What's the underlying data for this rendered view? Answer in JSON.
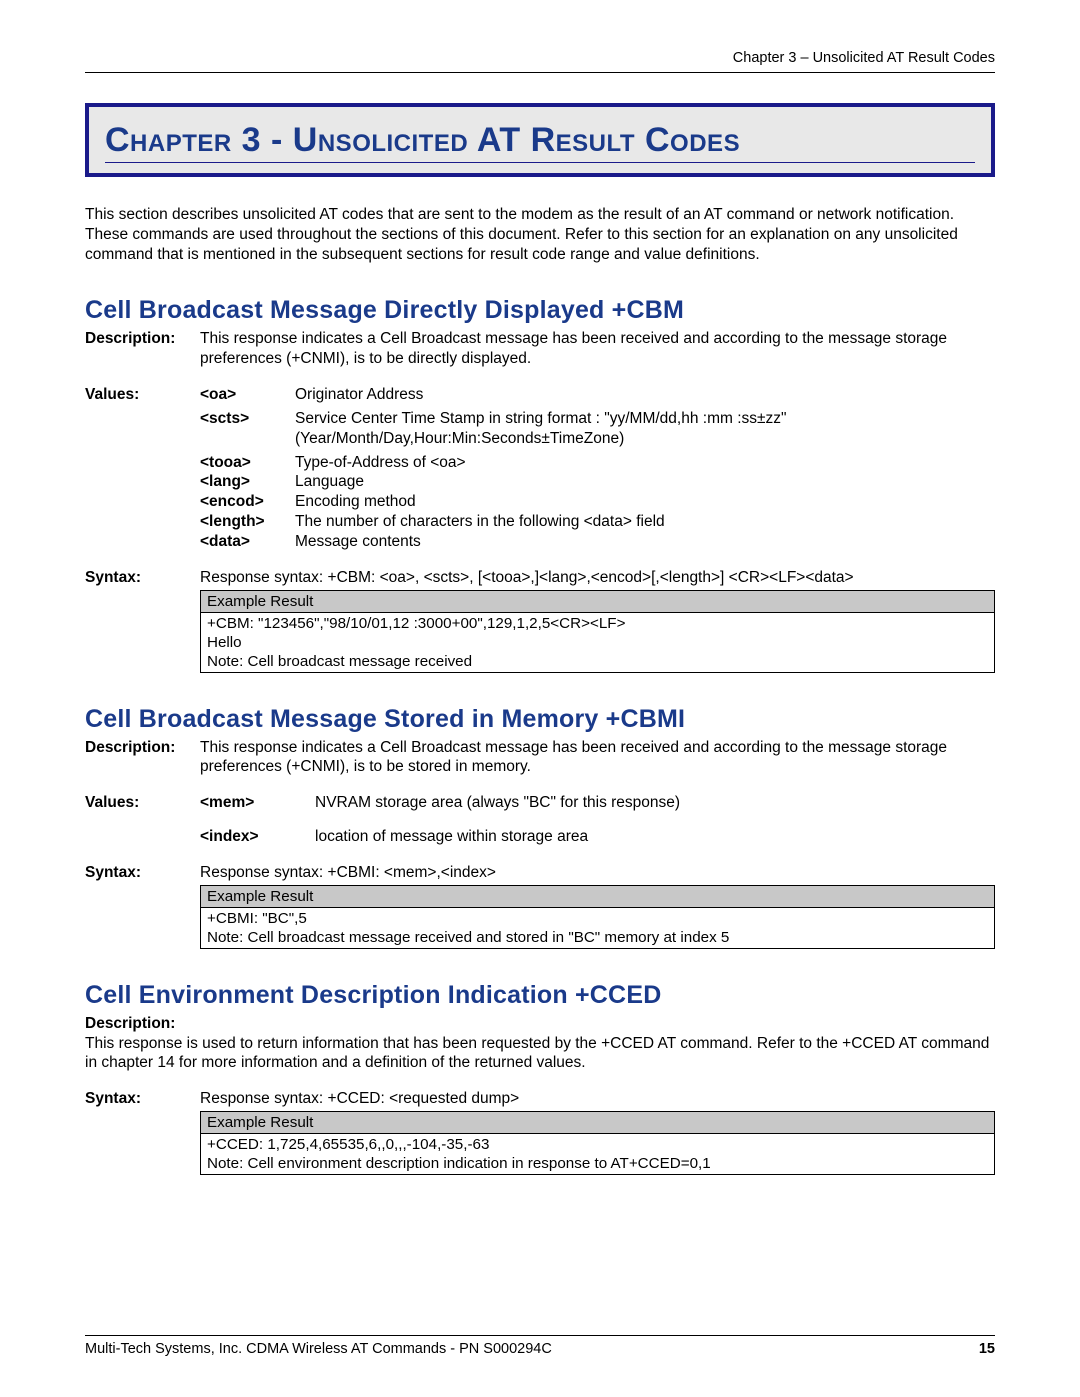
{
  "header": "Chapter 3 – Unsolicited AT Result Codes",
  "chapter_title": "Chapter 3 - Unsolicited AT Result Codes",
  "intro": "This section describes unsolicited AT codes that are sent to the modem as the result of an AT command or network notification. These commands are used throughout the sections of this document. Refer to this section for an explanation on any unsolicited command that is mentioned in the subsequent sections for result code range and value definitions.",
  "labels": {
    "description": "Description:",
    "values": "Values:",
    "syntax": "Syntax:",
    "example_result": "Example Result"
  },
  "cbm": {
    "heading": "Cell Broadcast Message Directly Displayed  +CBM",
    "description": "This response indicates a Cell Broadcast message has been received and according to the message storage preferences (+CNMI), is to be directly displayed.",
    "values": [
      {
        "key": "<oa>",
        "desc": "Originator Address"
      },
      {
        "key": "<scts>",
        "desc": "Service Center Time Stamp in string format : \"yy/MM/dd,hh :mm :ss±zz\" (Year/Month/Day,Hour:Min:Seconds±TimeZone)"
      },
      {
        "key": "<tooa>",
        "desc": "Type-of-Address of <oa>"
      },
      {
        "key": "<lang>",
        "desc": "Language"
      },
      {
        "key": "<encod>",
        "desc": "Encoding method"
      },
      {
        "key": "<length>",
        "desc": "The number of characters in the following <data> field"
      },
      {
        "key": "<data>",
        "desc": "Message contents"
      }
    ],
    "syntax_text": "Response syntax: +CBM: <oa>, <scts>, [<tooa>,]<lang>,<encod>[,<length>] <CR><LF><data>",
    "example_lines": [
      "+CBM: \"123456\",\"98/10/01,12 :3000+00\",129,1,2,5<CR><LF>",
      "Hello",
      "Note: Cell broadcast message received"
    ]
  },
  "cbmi": {
    "heading": "Cell Broadcast Message Stored in Memory  +CBMI",
    "description": "This response indicates a Cell Broadcast message has been received and according to the message storage preferences (+CNMI), is to be stored in memory.",
    "values": [
      {
        "key": "<mem>",
        "desc": "NVRAM storage area (always \"BC\" for this response)"
      },
      {
        "key": "<index>",
        "desc": "location of message within storage area"
      }
    ],
    "syntax_text": "Response syntax: +CBMI: <mem>,<index>",
    "example_lines": [
      "+CBMI: \"BC\",5",
      "Note: Cell broadcast message received and stored in \"BC\" memory at index 5"
    ]
  },
  "cced": {
    "heading": "Cell Environment Description Indication  +CCED",
    "description": "This response is used to return information that has been requested by the +CCED AT command. Refer to the +CCED AT command in chapter 14 for more information and a definition of the returned values.",
    "syntax_text": "Response syntax: +CCED: <requested dump>",
    "example_lines": [
      "+CCED: 1,725,4,65535,6,,0,,,-104,-35,-63",
      "Note: Cell environment description indication in response to AT+CCED=0,1"
    ]
  },
  "footer": {
    "text": "Multi-Tech Systems, Inc. CDMA Wireless AT Commands - PN S000294C",
    "page": "15"
  },
  "colors": {
    "heading_blue": "#1a3a8a",
    "box_border": "#1a1a8a",
    "box_bg": "#e8e8e8",
    "example_hdr_bg": "#c8c8c8"
  }
}
